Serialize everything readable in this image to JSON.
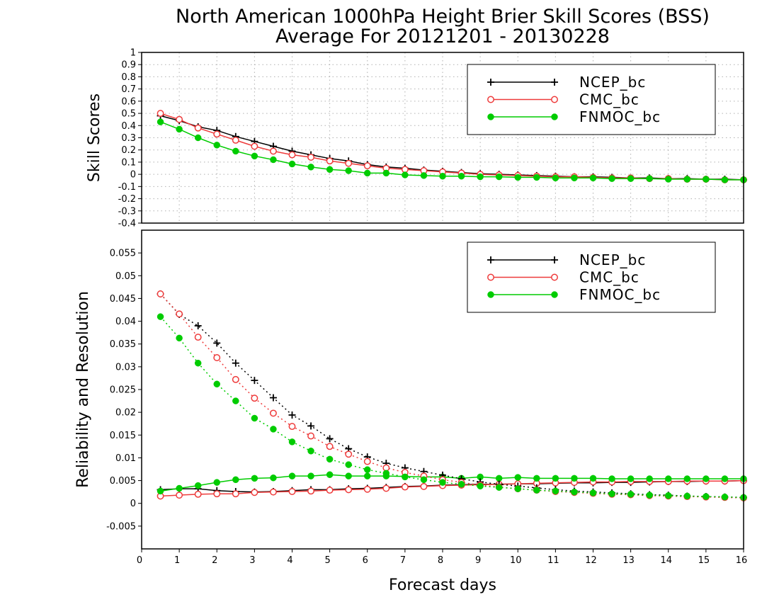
{
  "chart_data": {
    "title_line1": "North American 1000hPa Height Brier Skill Scores (BSS)",
    "title_line2": "Average For 20121201 - 20130228",
    "xlabel": "Forecast days",
    "x_ticks": [
      "0",
      "1",
      "2",
      "3",
      "4",
      "5",
      "6",
      "7",
      "8",
      "9",
      "10",
      "11",
      "12",
      "13",
      "14",
      "15",
      "16"
    ],
    "xlim": [
      0,
      16
    ],
    "x": [
      0.5,
      1,
      1.5,
      2,
      2.5,
      3,
      3.5,
      4,
      4.5,
      5,
      5.5,
      6,
      6.5,
      7,
      7.5,
      8,
      8.5,
      9,
      9.5,
      10,
      10.5,
      11,
      11.5,
      12,
      12.5,
      13,
      13.5,
      14,
      14.5,
      15,
      15.5,
      16
    ],
    "colors": {
      "NCEP_bc": "#000000",
      "CMC_bc": "#ee3b3b",
      "FNMOC_bc": "#00cc00"
    },
    "panels": [
      {
        "type": "line",
        "ylabel": "Skill Scores",
        "ylim": [
          -0.4,
          1
        ],
        "y_ticks": [
          "-0.4",
          "-0.3",
          "-0.2",
          "-0.1",
          "0",
          "0.1",
          "0.2",
          "0.3",
          "0.4",
          "0.5",
          "0.6",
          "0.7",
          "0.8",
          "0.9",
          "1"
        ],
        "grid": true,
        "legend_position": "top-right",
        "legend": [
          "NCEP_bc",
          "CMC_bc",
          "FNMOC_bc"
        ],
        "series": [
          {
            "name": "NCEP_bc",
            "marker": "plus",
            "style": "solid",
            "values": [
              0.48,
              0.44,
              0.39,
              0.36,
              0.31,
              0.27,
              0.23,
              0.19,
              0.16,
              0.13,
              0.11,
              0.08,
              0.06,
              0.05,
              0.035,
              0.025,
              0.015,
              0.005,
              0,
              -0.005,
              -0.01,
              -0.015,
              -0.02,
              -0.02,
              -0.025,
              -0.03,
              -0.03,
              -0.035,
              -0.035,
              -0.04,
              -0.04,
              -0.045
            ]
          },
          {
            "name": "CMC_bc",
            "marker": "circle-open",
            "style": "solid",
            "values": [
              0.5,
              0.45,
              0.38,
              0.33,
              0.28,
              0.23,
              0.19,
              0.16,
              0.14,
              0.11,
              0.09,
              0.07,
              0.05,
              0.04,
              0.03,
              0.02,
              0.01,
              0,
              -0.005,
              -0.01,
              -0.015,
              -0.02,
              -0.02,
              -0.025,
              -0.03,
              -0.03,
              -0.035,
              -0.035,
              -0.04,
              -0.04,
              -0.045,
              -0.045
            ]
          },
          {
            "name": "FNMOC_bc",
            "marker": "circle-filled",
            "style": "solid",
            "values": [
              0.43,
              0.37,
              0.3,
              0.24,
              0.19,
              0.15,
              0.12,
              0.085,
              0.06,
              0.04,
              0.03,
              0.01,
              0.01,
              -0.005,
              -0.01,
              -0.015,
              -0.015,
              -0.02,
              -0.02,
              -0.025,
              -0.025,
              -0.03,
              -0.03,
              -0.03,
              -0.035,
              -0.035,
              -0.035,
              -0.04,
              -0.04,
              -0.04,
              -0.045,
              -0.045
            ]
          }
        ]
      },
      {
        "type": "line",
        "ylabel": "Reliability and Resolution",
        "ylim": [
          -0.01,
          0.06
        ],
        "y_ticks": [
          "-0.005",
          "0",
          "0.005",
          "0.01",
          "0.015",
          "0.02",
          "0.025",
          "0.03",
          "0.035",
          "0.04",
          "0.045",
          "0.05",
          "0.055"
        ],
        "grid": false,
        "legend_position": "top-right",
        "legend": [
          "NCEP_bc",
          "CMC_bc",
          "FNMOC_bc"
        ],
        "series": [
          {
            "name": "NCEP_bc",
            "metric": "reliability",
            "marker": "plus",
            "style": "solid",
            "values": [
              0.003,
              0.0032,
              0.0032,
              0.0028,
              0.0026,
              0.0025,
              0.0026,
              0.0028,
              0.003,
              0.003,
              0.0032,
              0.0033,
              0.0035,
              0.0037,
              0.0038,
              0.004,
              0.0041,
              0.0042,
              0.0042,
              0.0043,
              0.0043,
              0.0044,
              0.0045,
              0.0045,
              0.0046,
              0.0046,
              0.0047,
              0.0048,
              0.0048,
              0.0049,
              0.0049,
              0.005
            ]
          },
          {
            "name": "CMC_bc",
            "metric": "reliability",
            "marker": "circle-open",
            "style": "solid",
            "values": [
              0.0016,
              0.0018,
              0.002,
              0.0021,
              0.0021,
              0.0024,
              0.0025,
              0.0026,
              0.0027,
              0.0029,
              0.003,
              0.0031,
              0.0033,
              0.0036,
              0.0037,
              0.0039,
              0.004,
              0.0041,
              0.0042,
              0.0043,
              0.0044,
              0.0045,
              0.0046,
              0.0047,
              0.0047,
              0.0048,
              0.0048,
              0.0048,
              0.0049,
              0.0049,
              0.0049,
              0.005
            ]
          },
          {
            "name": "FNMOC_bc",
            "metric": "reliability",
            "marker": "circle-filled",
            "style": "solid",
            "values": [
              0.0027,
              0.0033,
              0.0039,
              0.0046,
              0.0052,
              0.0055,
              0.0056,
              0.006,
              0.006,
              0.0063,
              0.006,
              0.006,
              0.006,
              0.0059,
              0.0058,
              0.0058,
              0.0055,
              0.0058,
              0.0055,
              0.0057,
              0.0055,
              0.0055,
              0.0055,
              0.0055,
              0.0054,
              0.0054,
              0.0054,
              0.0054,
              0.0054,
              0.0054,
              0.0054,
              0.0054
            ]
          },
          {
            "name": "NCEP_bc",
            "metric": "resolution",
            "marker": "plus",
            "style": "dotted",
            "values": [
              0.046,
              0.0415,
              0.039,
              0.0352,
              0.0308,
              0.027,
              0.0232,
              0.0194,
              0.017,
              0.0142,
              0.012,
              0.0102,
              0.0088,
              0.0078,
              0.007,
              0.0062,
              0.0054,
              0.0047,
              0.0042,
              0.0038,
              0.0034,
              0.003,
              0.0027,
              0.0025,
              0.0023,
              0.0021,
              0.0019,
              0.0018,
              0.0016,
              0.0015,
              0.0014,
              0.0013
            ]
          },
          {
            "name": "CMC_bc",
            "metric": "resolution",
            "marker": "circle-open",
            "style": "dotted",
            "values": [
              0.046,
              0.0416,
              0.0365,
              0.032,
              0.0272,
              0.0231,
              0.0198,
              0.0169,
              0.0148,
              0.0125,
              0.0108,
              0.0092,
              0.0078,
              0.0068,
              0.006,
              0.0052,
              0.0046,
              0.004,
              0.0036,
              0.0032,
              0.0029,
              0.0026,
              0.0024,
              0.0022,
              0.002,
              0.0019,
              0.0017,
              0.0016,
              0.0015,
              0.0014,
              0.0013,
              0.0012
            ]
          },
          {
            "name": "FNMOC_bc",
            "metric": "resolution",
            "marker": "circle-filled",
            "style": "dotted",
            "values": [
              0.041,
              0.0363,
              0.0308,
              0.0262,
              0.0225,
              0.0187,
              0.0163,
              0.0135,
              0.0115,
              0.0097,
              0.0085,
              0.0074,
              0.0066,
              0.0058,
              0.0052,
              0.0046,
              0.0042,
              0.0038,
              0.0035,
              0.0032,
              0.0029,
              0.0027,
              0.0025,
              0.0023,
              0.0021,
              0.002,
              0.0018,
              0.0017,
              0.0016,
              0.0015,
              0.0014,
              0.0013
            ]
          }
        ]
      }
    ]
  }
}
